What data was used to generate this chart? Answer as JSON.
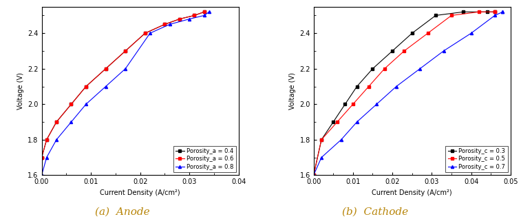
{
  "anode": {
    "title": "(a)  Anode",
    "xlabel": "Current Density (A/cm²)",
    "ylabel": "Voltage (V)",
    "xlim": [
      0.0,
      0.04
    ],
    "ylim": [
      1.6,
      2.55
    ],
    "xticks": [
      0.0,
      0.01,
      0.02,
      0.03,
      0.04
    ],
    "yticks": [
      1.6,
      1.8,
      2.0,
      2.2,
      2.4
    ],
    "series": [
      {
        "label": "Porosity_a = 0.4",
        "color": "black",
        "marker": "s",
        "x": [
          0.0,
          0.001,
          0.003,
          0.006,
          0.009,
          0.013,
          0.017,
          0.021,
          0.025,
          0.028,
          0.031,
          0.033
        ],
        "y": [
          1.7,
          1.8,
          1.9,
          2.0,
          2.1,
          2.2,
          2.3,
          2.4,
          2.45,
          2.48,
          2.5,
          2.52
        ]
      },
      {
        "label": "Porosity_a = 0.6",
        "color": "red",
        "marker": "s",
        "x": [
          0.0,
          0.001,
          0.003,
          0.006,
          0.009,
          0.013,
          0.017,
          0.021,
          0.025,
          0.028,
          0.031,
          0.033
        ],
        "y": [
          1.7,
          1.8,
          1.9,
          2.0,
          2.1,
          2.2,
          2.3,
          2.4,
          2.45,
          2.48,
          2.5,
          2.52
        ]
      },
      {
        "label": "Porosity_a = 0.8",
        "color": "blue",
        "marker": "^",
        "x": [
          0.0,
          0.001,
          0.003,
          0.006,
          0.009,
          0.013,
          0.017,
          0.022,
          0.026,
          0.03,
          0.033,
          0.034
        ],
        "y": [
          1.6,
          1.7,
          1.8,
          1.9,
          2.0,
          2.1,
          2.2,
          2.4,
          2.45,
          2.48,
          2.5,
          2.52
        ]
      }
    ]
  },
  "cathode": {
    "title": "(b)  Cathode",
    "xlabel": "Current Density (A/cm²)",
    "ylabel": "Voltage (V)",
    "xlim": [
      0.0,
      0.05
    ],
    "ylim": [
      1.6,
      2.55
    ],
    "xticks": [
      0.0,
      0.01,
      0.02,
      0.03,
      0.04,
      0.05
    ],
    "yticks": [
      1.6,
      1.8,
      2.0,
      2.2,
      2.4
    ],
    "series": [
      {
        "label": "Porosity_c = 0.3",
        "color": "black",
        "marker": "s",
        "x": [
          0.0,
          0.002,
          0.005,
          0.008,
          0.011,
          0.015,
          0.02,
          0.025,
          0.031,
          0.038,
          0.044,
          0.046
        ],
        "y": [
          1.6,
          1.8,
          1.9,
          2.0,
          2.1,
          2.2,
          2.3,
          2.4,
          2.5,
          2.52,
          2.52,
          2.52
        ]
      },
      {
        "label": "Porosity_c = 0.5",
        "color": "red",
        "marker": "s",
        "x": [
          0.0,
          0.002,
          0.006,
          0.01,
          0.014,
          0.018,
          0.023,
          0.029,
          0.035,
          0.042,
          0.046,
          0.046
        ],
        "y": [
          1.6,
          1.8,
          1.9,
          2.0,
          2.1,
          2.2,
          2.3,
          2.4,
          2.5,
          2.52,
          2.52,
          2.52
        ]
      },
      {
        "label": "Porosity_c = 0.7",
        "color": "blue",
        "marker": "^",
        "x": [
          0.0,
          0.002,
          0.007,
          0.011,
          0.016,
          0.021,
          0.027,
          0.033,
          0.04,
          0.046,
          0.048,
          0.048
        ],
        "y": [
          1.6,
          1.7,
          1.8,
          1.9,
          2.0,
          2.1,
          2.2,
          2.3,
          2.4,
          2.5,
          2.52,
          2.52
        ]
      }
    ]
  },
  "title_color": "#b8860b",
  "title_fontsize": 11,
  "axis_fontsize": 7,
  "legend_fontsize": 6,
  "tick_fontsize": 7
}
